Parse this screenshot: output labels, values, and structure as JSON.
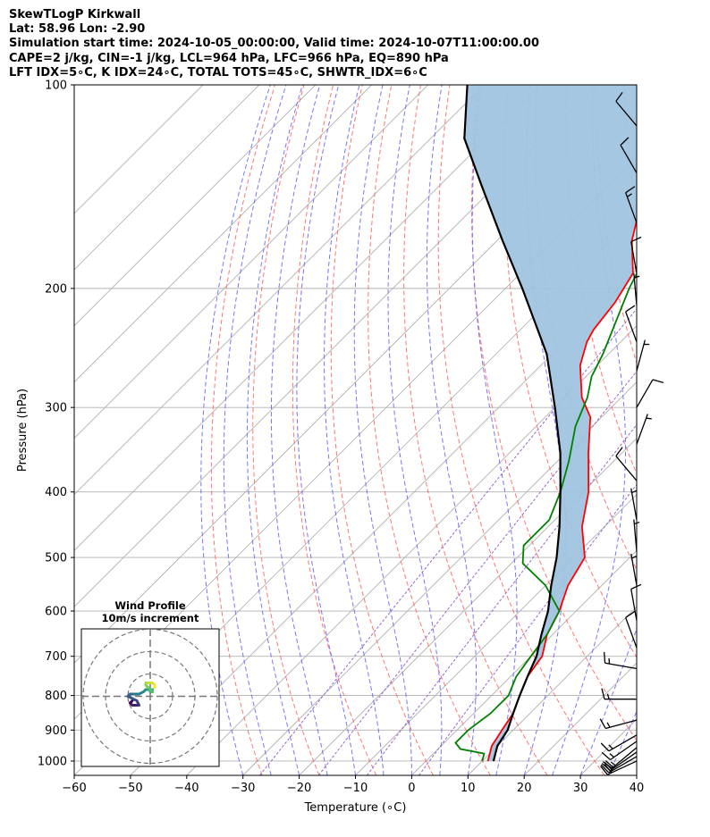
{
  "header": {
    "line1": "SkewTLogP Kirkwall",
    "line2": "Lat: 58.96   Lon: -2.90",
    "line3": "Simulation start time: 2024-10-05_00:00:00, Valid time: 2024-10-07T11:00:00.00",
    "line4": "CAPE=2 j/kg, CIN=-1 j/kg, LCL=964 hPa, LFC=966 hPa, EQ=890 hPa",
    "line5": "LFT IDX=5∘C, K IDX=24∘C, TOTAL TOTS=45∘C, SHWTR_IDX=6∘C"
  },
  "chart_data": [
    {
      "type": "line",
      "xlabel": "Temperature (∘C)",
      "ylabel": "Pressure (hPa)",
      "xlim": [
        -60,
        40
      ],
      "ylim": [
        1050,
        100
      ],
      "y_scale": "log",
      "skew": true,
      "grid": true,
      "x_ticks": [
        -60,
        -50,
        -40,
        -30,
        -20,
        -10,
        0,
        10,
        20,
        30,
        40
      ],
      "y_ticks": [
        100,
        200,
        300,
        400,
        500,
        600,
        700,
        800,
        900,
        1000
      ],
      "series": [
        {
          "color": "#ff0000",
          "kind": "temperature",
          "points": [
            [
              11,
              1000
            ],
            [
              9,
              950
            ],
            [
              8,
              900
            ],
            [
              7,
              850
            ],
            [
              5,
              800
            ],
            [
              3,
              750
            ],
            [
              2,
              700
            ],
            [
              -1,
              650
            ],
            [
              -3,
              600
            ],
            [
              -6,
              550
            ],
            [
              -8,
              500
            ],
            [
              -14,
              450
            ],
            [
              -19,
              400
            ],
            [
              -26,
              350
            ],
            [
              -32,
              310
            ],
            [
              -37,
              290
            ],
            [
              -43,
              260
            ],
            [
              -46,
              240
            ],
            [
              -47,
              230
            ],
            [
              -48,
              210
            ],
            [
              -50,
              190
            ],
            [
              -56,
              170
            ],
            [
              -61,
              150
            ],
            [
              -65,
              130
            ],
            [
              -69,
              115
            ],
            [
              -72,
              100
            ]
          ]
        },
        {
          "color": "#008000",
          "kind": "dewpoint",
          "points": [
            [
              10,
              1000
            ],
            [
              9,
              975
            ],
            [
              4,
              960
            ],
            [
              2,
              940
            ],
            [
              2,
              900
            ],
            [
              3,
              850
            ],
            [
              3,
              800
            ],
            [
              1,
              750
            ],
            [
              0,
              700
            ],
            [
              -1,
              650
            ],
            [
              -3,
              600
            ],
            [
              -10,
              550
            ],
            [
              -18,
              510
            ],
            [
              -21,
              480
            ],
            [
              -21,
              440
            ],
            [
              -24,
              400
            ],
            [
              -28,
              360
            ],
            [
              -33,
              320
            ],
            [
              -36,
              290
            ],
            [
              -39,
              270
            ],
            [
              -41,
              250
            ],
            [
              -45,
              220
            ],
            [
              -48,
              200
            ],
            [
              -50,
              185
            ],
            [
              -53,
              170
            ],
            [
              -57,
              155
            ],
            [
              -62,
              140
            ],
            [
              -68,
              120
            ],
            [
              -73,
              110
            ],
            [
              -76,
              100
            ]
          ]
        },
        {
          "color": "#000000",
          "kind": "parcel",
          "points": [
            [
              12,
              1000
            ],
            [
              10,
              950
            ],
            [
              9,
              900
            ],
            [
              7,
              850
            ],
            [
              5,
              800
            ],
            [
              3,
              750
            ],
            [
              1,
              700
            ],
            [
              -2,
              650
            ],
            [
              -5,
              600
            ],
            [
              -9,
              550
            ],
            [
              -13,
              500
            ],
            [
              -18,
              450
            ],
            [
              -24,
              400
            ],
            [
              -31,
              350
            ],
            [
              -40,
              300
            ],
            [
              -51,
              250
            ],
            [
              -67,
              200
            ],
            [
              -79,
              170
            ],
            [
              -93,
              140
            ],
            [
              -104,
              120
            ],
            [
              -113,
              100
            ]
          ]
        }
      ],
      "cape_shading": {
        "color": "#a0c4df",
        "between": [
          "parcel",
          "temperature"
        ]
      },
      "dry_adiabat_color": "#ff6666",
      "moist_adiabat_color": "#6666ff",
      "mixing_ratio_color": "#9966cc",
      "isotherm_color": "#b0b0b0",
      "wind_barbs": [
        {
          "p": 1000,
          "speed": 20,
          "dir": 245
        },
        {
          "p": 985,
          "speed": 20,
          "dir": 240
        },
        {
          "p": 970,
          "speed": 20,
          "dir": 235
        },
        {
          "p": 955,
          "speed": 15,
          "dir": 230
        },
        {
          "p": 935,
          "speed": 15,
          "dir": 235
        },
        {
          "p": 915,
          "speed": 15,
          "dir": 240
        },
        {
          "p": 870,
          "speed": 15,
          "dir": 255
        },
        {
          "p": 810,
          "speed": 15,
          "dir": 270
        },
        {
          "p": 730,
          "speed": 15,
          "dir": 280
        },
        {
          "p": 680,
          "speed": 10,
          "dir": 340
        },
        {
          "p": 620,
          "speed": 10,
          "dir": 350
        },
        {
          "p": 550,
          "speed": 5,
          "dir": 350
        },
        {
          "p": 490,
          "speed": 5,
          "dir": 355
        },
        {
          "p": 440,
          "speed": 5,
          "dir": 350
        },
        {
          "p": 385,
          "speed": 10,
          "dir": 320
        },
        {
          "p": 340,
          "speed": 5,
          "dir": 20
        },
        {
          "p": 300,
          "speed": 10,
          "dir": 30
        },
        {
          "p": 265,
          "speed": 5,
          "dir": 15
        },
        {
          "p": 240,
          "speed": 10,
          "dir": 340
        },
        {
          "p": 212,
          "speed": 5,
          "dir": 355
        },
        {
          "p": 190,
          "speed": 10,
          "dir": 350
        },
        {
          "p": 160,
          "speed": 15,
          "dir": 340
        },
        {
          "p": 135,
          "speed": 10,
          "dir": 330
        },
        {
          "p": 115,
          "speed": 10,
          "dir": 320
        }
      ]
    },
    {
      "type": "hodograph",
      "title": "Wind Profile",
      "subtitle": "10m/s increment",
      "ring_step": 10,
      "rings": 3,
      "colormap": "viridis",
      "points_uv": [
        [
          -8,
          -2
        ],
        [
          -9,
          -3
        ],
        [
          -8,
          -4
        ],
        [
          -6,
          -4
        ],
        [
          -5,
          -4
        ],
        [
          -6,
          -2
        ],
        [
          -8,
          -1
        ],
        [
          -10,
          0
        ],
        [
          -9,
          1
        ],
        [
          -7,
          1
        ],
        [
          -5,
          1
        ],
        [
          -3,
          2
        ],
        [
          -2,
          3
        ],
        [
          0,
          3
        ],
        [
          1,
          3
        ],
        [
          0,
          2
        ],
        [
          1,
          2
        ],
        [
          0,
          3
        ],
        [
          -1,
          4
        ],
        [
          -2,
          5
        ],
        [
          -2,
          6
        ],
        [
          -1,
          6
        ],
        [
          1,
          6
        ],
        [
          2,
          5
        ],
        [
          2,
          4
        ]
      ]
    }
  ]
}
